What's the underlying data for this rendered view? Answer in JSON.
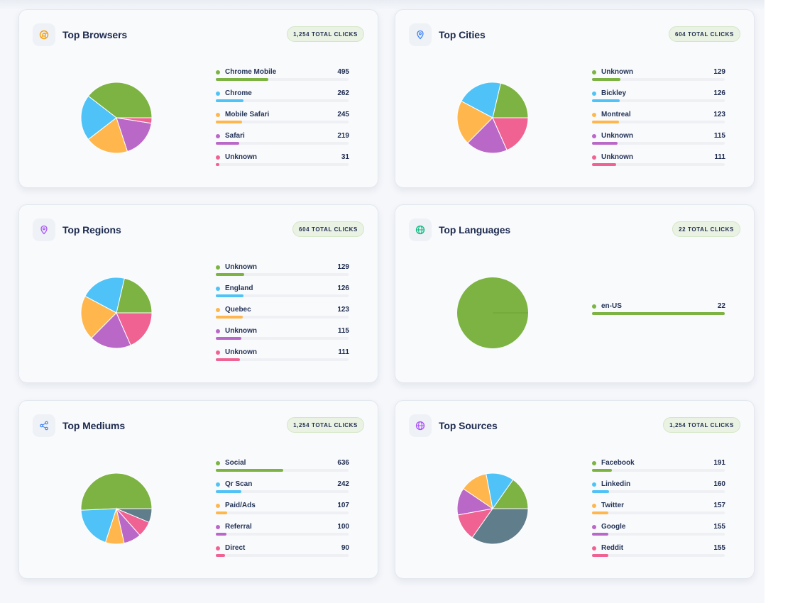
{
  "colors": [
    "#7cb342",
    "#4fc3f7",
    "#ffb74d",
    "#ba68c8",
    "#f06292",
    "#607d8b"
  ],
  "cards": [
    {
      "title": "Top Browsers",
      "badge": "1,254 TOTAL CLICKS",
      "icon": "chrome-icon",
      "icon_color": "#f59e0b",
      "items": [
        {
          "label": "Chrome Mobile",
          "value": "495",
          "n": 495
        },
        {
          "label": "Chrome",
          "value": "262",
          "n": 262
        },
        {
          "label": "Mobile Safari",
          "value": "245",
          "n": 245
        },
        {
          "label": "Safari",
          "value": "219",
          "n": 219
        },
        {
          "label": "Unknown",
          "value": "31",
          "n": 31
        }
      ]
    },
    {
      "title": "Top Cities",
      "badge": "604 TOTAL CLICKS",
      "icon": "map-pin-icon",
      "icon_color": "#3b82f6",
      "items": [
        {
          "label": "Unknown",
          "value": "129",
          "n": 129
        },
        {
          "label": "Bickley",
          "value": "126",
          "n": 126
        },
        {
          "label": "Montreal",
          "value": "123",
          "n": 123
        },
        {
          "label": "Unknown",
          "value": "115",
          "n": 115
        },
        {
          "label": "Unknown",
          "value": "111",
          "n": 111
        }
      ]
    },
    {
      "title": "Top Regions",
      "badge": "604 TOTAL CLICKS",
      "icon": "location-pin-icon",
      "icon_color": "#a855f7",
      "items": [
        {
          "label": "Unknown",
          "value": "129",
          "n": 129
        },
        {
          "label": "England",
          "value": "126",
          "n": 126
        },
        {
          "label": "Quebec",
          "value": "123",
          "n": 123
        },
        {
          "label": "Unknown",
          "value": "115",
          "n": 115
        },
        {
          "label": "Unknown",
          "value": "111",
          "n": 111
        }
      ]
    },
    {
      "title": "Top Languages",
      "badge": "22 TOTAL CLICKS",
      "icon": "globe-icon",
      "icon_color": "#10b981",
      "items": [
        {
          "label": "en-US",
          "value": "22",
          "n": 22
        }
      ]
    },
    {
      "title": "Top Mediums",
      "badge": "1,254 TOTAL CLICKS",
      "icon": "share-icon",
      "icon_color": "#3b82f6",
      "items": [
        {
          "label": "Social",
          "value": "636",
          "n": 636
        },
        {
          "label": "Qr Scan",
          "value": "242",
          "n": 242
        },
        {
          "label": "Paid/Ads",
          "value": "107",
          "n": 107
        },
        {
          "label": "Referral",
          "value": "100",
          "n": 100
        },
        {
          "label": "Direct",
          "value": "90",
          "n": 90
        }
      ],
      "other_slice": 79
    },
    {
      "title": "Top Sources",
      "badge": "1,254 TOTAL CLICKS",
      "icon": "globe-icon",
      "icon_color": "#a855f7",
      "items": [
        {
          "label": "Facebook",
          "value": "191",
          "n": 191
        },
        {
          "label": "Linkedin",
          "value": "160",
          "n": 160
        },
        {
          "label": "Twitter",
          "value": "157",
          "n": 157
        },
        {
          "label": "Google",
          "value": "155",
          "n": 155
        },
        {
          "label": "Reddit",
          "value": "155",
          "n": 155
        }
      ],
      "other_slice": 436
    }
  ]
}
